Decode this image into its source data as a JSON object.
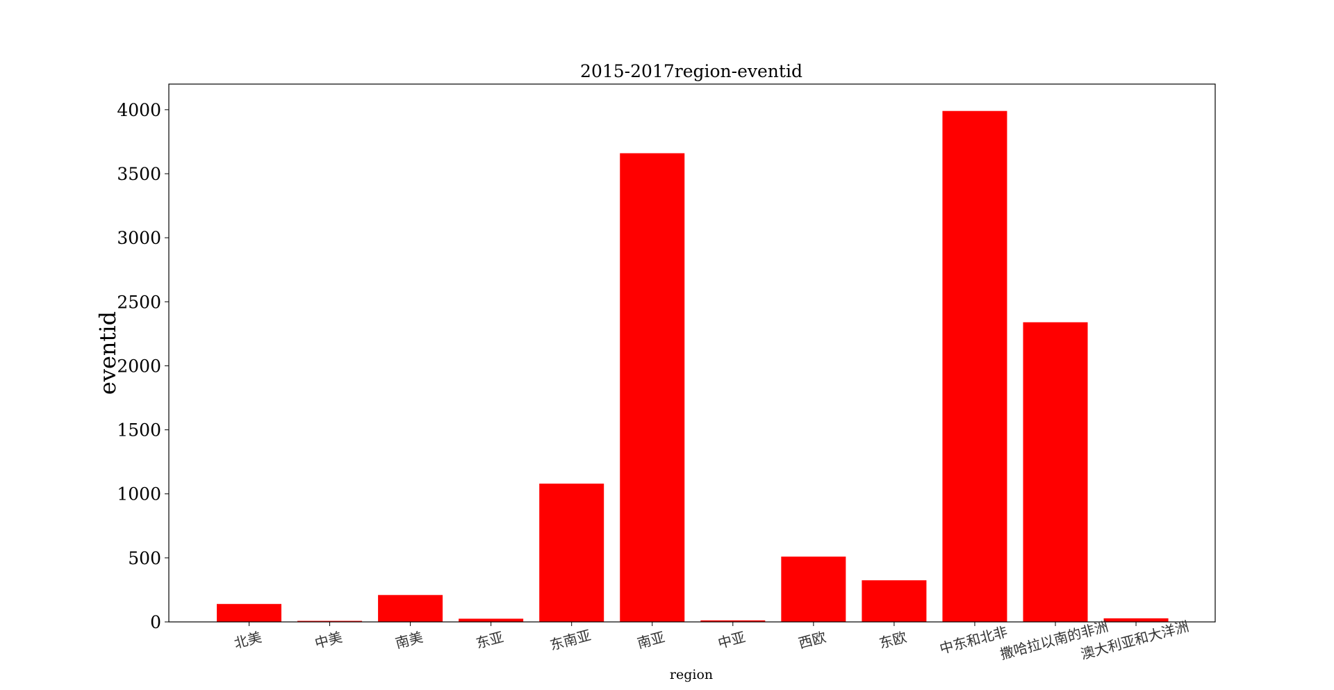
{
  "chart_data": {
    "type": "bar",
    "title": "2015-2017region-eventid",
    "xlabel": "region",
    "ylabel": "eventid",
    "categories": [
      "北美",
      "中美",
      "南美",
      "东亚",
      "东南亚",
      "南亚",
      "中亚",
      "西欧",
      "东欧",
      "中东和北非",
      "撒哈拉以南的非洲",
      "澳大利亚和大洋洲"
    ],
    "values": [
      140,
      8,
      210,
      25,
      1080,
      3660,
      12,
      510,
      325,
      3990,
      2340,
      28
    ],
    "ylim": [
      0,
      4200
    ],
    "yticks": [
      0,
      500,
      1000,
      1500,
      2000,
      2500,
      3000,
      3500,
      4000
    ],
    "bar_color": "#ff0000",
    "grid": false,
    "legend": "none",
    "xtick_rotation": -15
  }
}
